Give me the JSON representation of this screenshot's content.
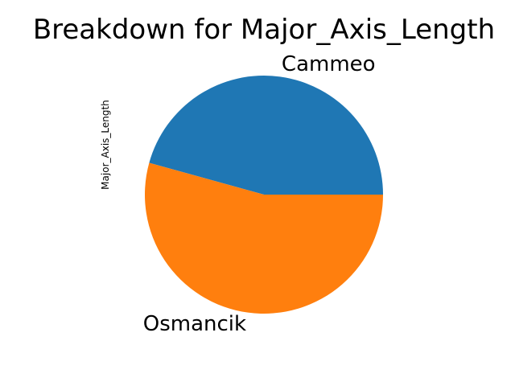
{
  "chart_data": {
    "type": "pie",
    "title": "Breakdown for Major_Axis_Length",
    "ylabel": "Major_Axis_Length",
    "categories": [
      "Cammeo",
      "Osmancik"
    ],
    "values": [
      45.7,
      54.3
    ],
    "colors": [
      "#1f77b4",
      "#ff7f0e"
    ],
    "legend": "none"
  }
}
